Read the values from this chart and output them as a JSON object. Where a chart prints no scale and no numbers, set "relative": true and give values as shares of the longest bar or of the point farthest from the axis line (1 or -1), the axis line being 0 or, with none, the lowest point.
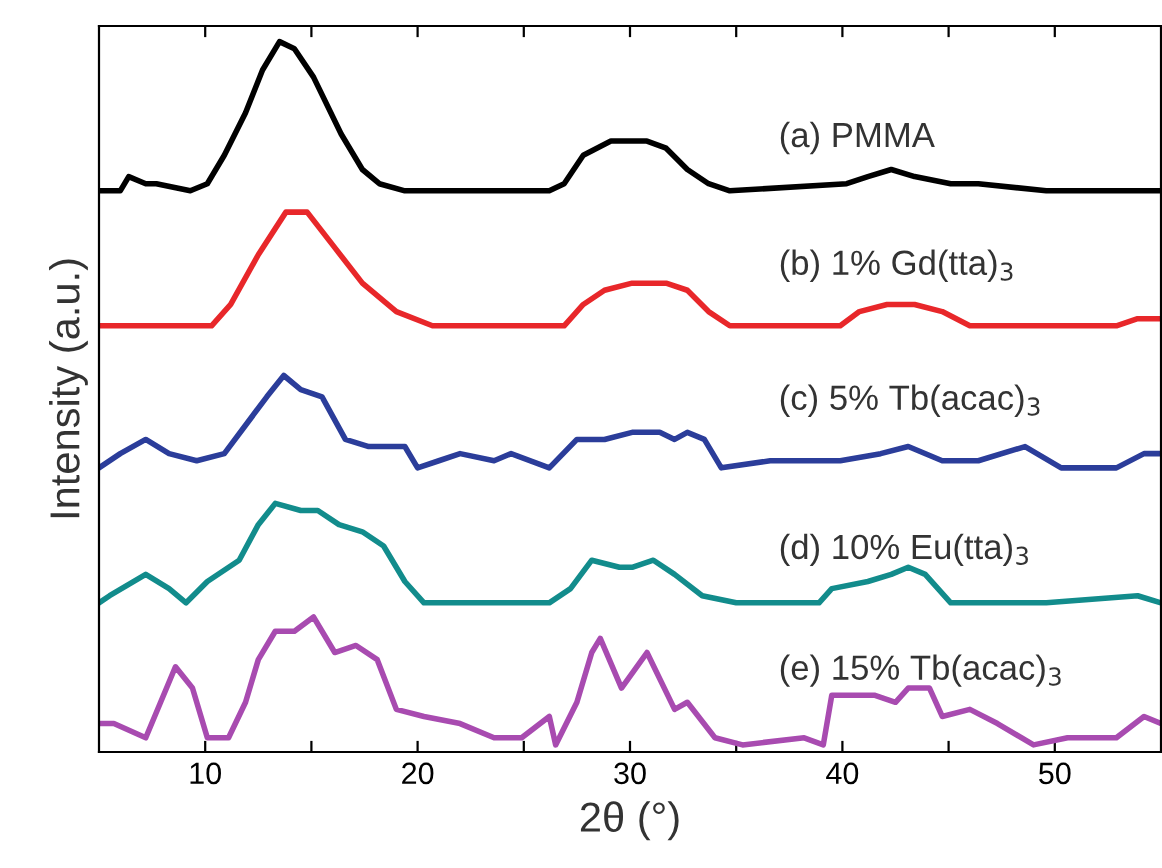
{
  "chart_data": {
    "type": "line",
    "relative": true,
    "xlabel": "2θ (°)",
    "ylabel": "Intensity (a.u.)",
    "xlim": [
      5,
      55
    ],
    "xticks": [
      10,
      {
        "value": 15,
        "label": null
      },
      20,
      {
        "value": 25,
        "label": null
      },
      30,
      {
        "value": 35,
        "label": null
      },
      40,
      {
        "value": 45,
        "label": null
      },
      50
    ],
    "grid": false,
    "marker": "none",
    "line_style": "solid",
    "tick_labels": "x",
    "series": [
      {
        "name": "(a) PMMA",
        "color": "#000000",
        "x": [
          5,
          6,
          6.4,
          7.2,
          7.7,
          9.3,
          10.1,
          10.9,
          11.9,
          12.7,
          13.5,
          14.2,
          15.1,
          16.4,
          17.4,
          18.2,
          19.4,
          26.2,
          26.9,
          27.8,
          29.1,
          30.1,
          30.8,
          31.7,
          32.7,
          33.7,
          34.7,
          40.2,
          41.2,
          42.3,
          43.4,
          45.1,
          46.4,
          49.6,
          55
        ],
        "values": [
          0.79,
          0.79,
          0.81,
          0.8,
          0.8,
          0.79,
          0.8,
          0.84,
          0.9,
          0.96,
          1.0,
          0.99,
          0.95,
          0.87,
          0.82,
          0.8,
          0.79,
          0.79,
          0.8,
          0.84,
          0.86,
          0.86,
          0.86,
          0.85,
          0.82,
          0.8,
          0.79,
          0.8,
          0.81,
          0.82,
          0.81,
          0.8,
          0.8,
          0.79,
          0.79
        ]
      },
      {
        "name": "(b) 1% Gd(tta)$_{3}$",
        "color": "#e8272a",
        "x": [
          5,
          6,
          6.4,
          10.3,
          11.2,
          12.5,
          13.8,
          14.8,
          16.1,
          17.4,
          19.0,
          20.7,
          22.3,
          26.9,
          27.8,
          28.8,
          30.1,
          31.7,
          32.7,
          33.7,
          34.7,
          39.9,
          40.8,
          42.1,
          43.4,
          44.7,
          46.0,
          52.9,
          53.9,
          55
        ],
        "values": [
          0.6,
          0.6,
          0.6,
          0.6,
          0.63,
          0.7,
          0.76,
          0.76,
          0.71,
          0.66,
          0.62,
          0.6,
          0.6,
          0.6,
          0.63,
          0.65,
          0.66,
          0.66,
          0.65,
          0.62,
          0.6,
          0.6,
          0.62,
          0.63,
          0.63,
          0.62,
          0.6,
          0.6,
          0.61,
          0.61
        ]
      },
      {
        "name": "(c) 5% Tb(acac)$_{3}$",
        "color": "#2b3d9a",
        "x": [
          5,
          6,
          7.2,
          8.3,
          9.6,
          10.9,
          11.9,
          12.9,
          13.7,
          14.5,
          15.5,
          16.6,
          17.7,
          19.4,
          20.0,
          21.0,
          22.0,
          23.6,
          24.4,
          26.2,
          27.5,
          28.8,
          30.1,
          31.4,
          32.1,
          32.7,
          33.5,
          34.3,
          36.6,
          39.9,
          41.8,
          43.1,
          44.7,
          46.4,
          48.6,
          50.3,
          52.9,
          54.2,
          55
        ],
        "values": [
          0.4,
          0.42,
          0.44,
          0.42,
          0.41,
          0.42,
          0.46,
          0.5,
          0.53,
          0.51,
          0.5,
          0.44,
          0.43,
          0.43,
          0.4,
          0.41,
          0.42,
          0.41,
          0.42,
          0.4,
          0.44,
          0.44,
          0.45,
          0.45,
          0.44,
          0.45,
          0.44,
          0.4,
          0.41,
          0.41,
          0.42,
          0.43,
          0.41,
          0.41,
          0.43,
          0.4,
          0.4,
          0.42,
          0.42
        ]
      },
      {
        "name": "(d) 10% Eu(tta)$_{3}$",
        "color": "#128c8c",
        "x": [
          5,
          5.5,
          7.2,
          8.3,
          9.1,
          10.1,
          11.6,
          12.5,
          13.3,
          14.5,
          15.3,
          16.3,
          17.4,
          18.4,
          19.4,
          20.3,
          22.0,
          26.2,
          27.2,
          28.2,
          29.5,
          30.1,
          31.1,
          32.1,
          33.4,
          35.0,
          38.9,
          39.5,
          41.2,
          42.3,
          43.1,
          43.9,
          45.1,
          49.6,
          53.9,
          55
        ],
        "values": [
          0.21,
          0.22,
          0.25,
          0.23,
          0.21,
          0.24,
          0.27,
          0.32,
          0.35,
          0.34,
          0.34,
          0.32,
          0.31,
          0.29,
          0.24,
          0.21,
          0.21,
          0.21,
          0.23,
          0.27,
          0.26,
          0.26,
          0.27,
          0.25,
          0.22,
          0.21,
          0.21,
          0.23,
          0.24,
          0.25,
          0.26,
          0.25,
          0.21,
          0.21,
          0.22,
          0.21
        ]
      },
      {
        "name": "(e) 15% Tb(acac)$_{3}$",
        "color": "#a84bb0",
        "x": [
          5,
          5.7,
          7.2,
          8.6,
          9.4,
          10.1,
          11.1,
          11.9,
          12.5,
          13.3,
          14.2,
          15.1,
          16.1,
          17.1,
          18.1,
          19.0,
          20.3,
          22.0,
          23.6,
          24.9,
          26.2,
          26.5,
          27.5,
          28.2,
          28.6,
          29.6,
          30.8,
          32.1,
          32.7,
          34.0,
          35.3,
          38.2,
          39.1,
          39.5,
          40.5,
          41.5,
          42.5,
          43.1,
          44.1,
          44.7,
          46.0,
          47.3,
          49.0,
          50.6,
          52.9,
          54.2,
          55
        ],
        "values": [
          0.04,
          0.04,
          0.02,
          0.12,
          0.09,
          0.02,
          0.02,
          0.07,
          0.13,
          0.17,
          0.17,
          0.19,
          0.14,
          0.15,
          0.13,
          0.06,
          0.05,
          0.04,
          0.02,
          0.02,
          0.05,
          0.01,
          0.07,
          0.14,
          0.16,
          0.09,
          0.14,
          0.06,
          0.07,
          0.02,
          0.01,
          0.02,
          0.01,
          0.08,
          0.08,
          0.08,
          0.07,
          0.09,
          0.09,
          0.05,
          0.06,
          0.04,
          0.01,
          0.02,
          0.02,
          0.05,
          0.04
        ]
      }
    ]
  }
}
